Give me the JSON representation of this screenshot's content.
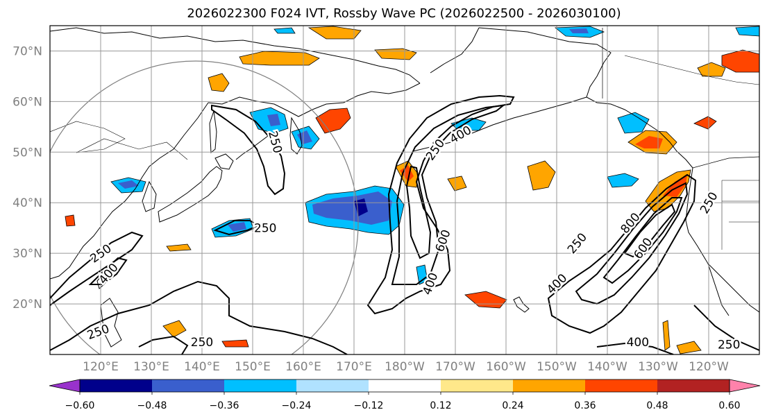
{
  "chart_data": {
    "type": "map-contour",
    "title": "2026022300 F024 IVT, Rossby Wave PC (2026022500 - 2026030100)",
    "lon_range": [
      110,
      250
    ],
    "lat_range": [
      10,
      75
    ],
    "lat_ticks": [
      {
        "value": 20,
        "label": "20°N"
      },
      {
        "value": 30,
        "label": "30°N"
      },
      {
        "value": 40,
        "label": "40°N"
      },
      {
        "value": 50,
        "label": "50°N"
      },
      {
        "value": 60,
        "label": "60°N"
      },
      {
        "value": 70,
        "label": "70°N"
      }
    ],
    "lon_ticks": [
      {
        "value": 120,
        "label": "120°E"
      },
      {
        "value": 130,
        "label": "130°E"
      },
      {
        "value": 140,
        "label": "140°E"
      },
      {
        "value": 150,
        "label": "150°E"
      },
      {
        "value": 160,
        "label": "160°E"
      },
      {
        "value": 170,
        "label": "170°E"
      },
      {
        "value": 180,
        "label": "180°W"
      },
      {
        "value": 190,
        "label": "170°W"
      },
      {
        "value": 200,
        "label": "160°W"
      },
      {
        "value": 210,
        "label": "150°W"
      },
      {
        "value": 220,
        "label": "140°W"
      },
      {
        "value": 230,
        "label": "130°W"
      },
      {
        "value": 240,
        "label": "120°W"
      }
    ],
    "colorbar": {
      "boundaries": [
        -0.72,
        -0.6,
        -0.48,
        -0.36,
        -0.24,
        -0.12,
        0.12,
        0.24,
        0.36,
        0.48,
        0.6,
        0.72
      ],
      "colors": [
        "#9932cc",
        "#00008b",
        "#3a5fcd",
        "#00bfff",
        "#b0e2ff",
        "#ffffff",
        "#ffe88a",
        "#ffa500",
        "#ff4500",
        "#b22222",
        "#ff82ab"
      ],
      "extend": "both",
      "tick_values": [
        -0.6,
        -0.48,
        -0.36,
        -0.24,
        -0.12,
        0.12,
        0.24,
        0.36,
        0.48,
        0.6
      ],
      "tick_labels": [
        "−0.60",
        "−0.48",
        "−0.36",
        "−0.24",
        "−0.12",
        "0.12",
        "0.24",
        "0.36",
        "0.48",
        "0.60"
      ]
    },
    "ivt_contour_levels": [
      250,
      400,
      600,
      800
    ],
    "contour_labels": [
      {
        "text": "250",
        "lon": 154.5,
        "lat": 52.0,
        "angle": 75
      },
      {
        "text": "250",
        "lon": 152.5,
        "lat": 35.0,
        "angle": 0
      },
      {
        "text": "250",
        "lon": 120.0,
        "lat": 30.0,
        "angle": -35
      },
      {
        "text": "400",
        "lon": 121.5,
        "lat": 26.0,
        "angle": -50
      },
      {
        "text": "250",
        "lon": 119.5,
        "lat": 14.5,
        "angle": -20
      },
      {
        "text": "250",
        "lon": 140.0,
        "lat": 12.5,
        "angle": 0
      },
      {
        "text": "250",
        "lon": 186.0,
        "lat": 50.5,
        "angle": -55
      },
      {
        "text": "400",
        "lon": 191.0,
        "lat": 53.5,
        "angle": -30
      },
      {
        "text": "600",
        "lon": 187.5,
        "lat": 32.5,
        "angle": -70
      },
      {
        "text": "400",
        "lon": 185.0,
        "lat": 24.0,
        "angle": -70
      },
      {
        "text": "250",
        "lon": 214.0,
        "lat": 32.0,
        "angle": -50
      },
      {
        "text": "800",
        "lon": 224.5,
        "lat": 36.0,
        "angle": -50
      },
      {
        "text": "600",
        "lon": 227.0,
        "lat": 31.0,
        "angle": -55
      },
      {
        "text": "400",
        "lon": 210.0,
        "lat": 24.0,
        "angle": -45
      },
      {
        "text": "250",
        "lon": 240.0,
        "lat": 40.0,
        "angle": -60
      },
      {
        "text": "400",
        "lon": 226.0,
        "lat": 12.5,
        "angle": 0
      },
      {
        "text": "250",
        "lon": 244.0,
        "lat": 12.0,
        "angle": 0
      }
    ]
  }
}
